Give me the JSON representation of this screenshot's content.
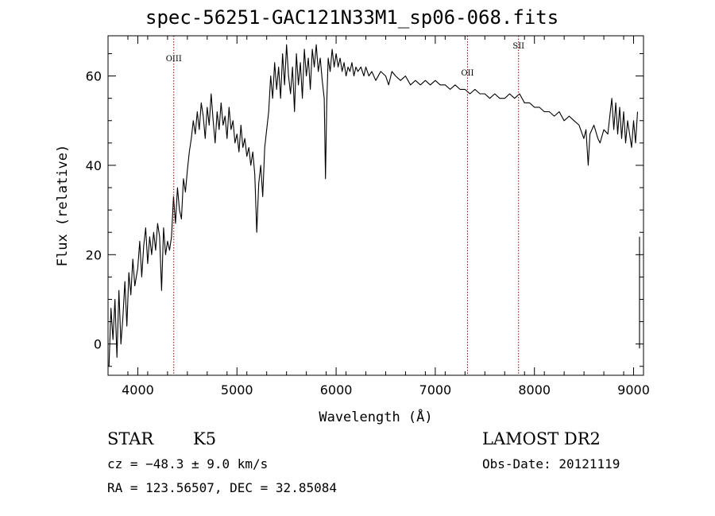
{
  "chart_data": {
    "type": "line",
    "title": "spec-56251-GAC121N33M1_sp06-068.fits",
    "xlabel": "Wavelength (Å)",
    "ylabel": "Flux (relative)",
    "xlim": [
      3700,
      9100
    ],
    "ylim": [
      -7,
      69
    ],
    "xticks": [
      4000,
      5000,
      6000,
      7000,
      8000,
      9000
    ],
    "yticks": [
      0,
      20,
      40,
      60
    ],
    "grid": false,
    "line_color": "#000000",
    "marker_color": "#8b0000",
    "series": [
      {
        "points": [
          [
            3710,
            -5
          ],
          [
            3730,
            8
          ],
          [
            3750,
            1
          ],
          [
            3770,
            10
          ],
          [
            3790,
            -3
          ],
          [
            3810,
            12
          ],
          [
            3830,
            0
          ],
          [
            3850,
            6
          ],
          [
            3870,
            14
          ],
          [
            3890,
            4
          ],
          [
            3910,
            16
          ],
          [
            3930,
            11
          ],
          [
            3950,
            19
          ],
          [
            3970,
            13
          ],
          [
            4000,
            17
          ],
          [
            4020,
            23
          ],
          [
            4040,
            15
          ],
          [
            4060,
            22
          ],
          [
            4080,
            26
          ],
          [
            4100,
            18
          ],
          [
            4120,
            24
          ],
          [
            4140,
            20
          ],
          [
            4160,
            25
          ],
          [
            4180,
            21
          ],
          [
            4200,
            27
          ],
          [
            4220,
            24
          ],
          [
            4240,
            12
          ],
          [
            4260,
            26
          ],
          [
            4280,
            20
          ],
          [
            4300,
            23
          ],
          [
            4320,
            21
          ],
          [
            4340,
            24
          ],
          [
            4360,
            33
          ],
          [
            4380,
            27
          ],
          [
            4400,
            35
          ],
          [
            4420,
            30
          ],
          [
            4440,
            28
          ],
          [
            4460,
            37
          ],
          [
            4480,
            34
          ],
          [
            4500,
            39
          ],
          [
            4520,
            43
          ],
          [
            4540,
            46
          ],
          [
            4560,
            50
          ],
          [
            4580,
            47
          ],
          [
            4600,
            52
          ],
          [
            4620,
            48
          ],
          [
            4640,
            54
          ],
          [
            4660,
            51
          ],
          [
            4680,
            46
          ],
          [
            4700,
            53
          ],
          [
            4720,
            49
          ],
          [
            4740,
            56
          ],
          [
            4760,
            50
          ],
          [
            4780,
            45
          ],
          [
            4800,
            52
          ],
          [
            4820,
            48
          ],
          [
            4840,
            54
          ],
          [
            4860,
            49
          ],
          [
            4880,
            51
          ],
          [
            4900,
            46
          ],
          [
            4920,
            53
          ],
          [
            4940,
            48
          ],
          [
            4960,
            50
          ],
          [
            4980,
            45
          ],
          [
            5000,
            47
          ],
          [
            5020,
            43
          ],
          [
            5040,
            49
          ],
          [
            5060,
            44
          ],
          [
            5080,
            46
          ],
          [
            5100,
            42
          ],
          [
            5120,
            44
          ],
          [
            5140,
            40
          ],
          [
            5160,
            43
          ],
          [
            5180,
            38
          ],
          [
            5200,
            25
          ],
          [
            5220,
            36
          ],
          [
            5240,
            40
          ],
          [
            5260,
            33
          ],
          [
            5280,
            44
          ],
          [
            5300,
            48
          ],
          [
            5320,
            52
          ],
          [
            5340,
            60
          ],
          [
            5360,
            55
          ],
          [
            5380,
            63
          ],
          [
            5400,
            57
          ],
          [
            5420,
            62
          ],
          [
            5440,
            55
          ],
          [
            5460,
            65
          ],
          [
            5480,
            58
          ],
          [
            5500,
            67
          ],
          [
            5520,
            60
          ],
          [
            5540,
            56
          ],
          [
            5560,
            62
          ],
          [
            5580,
            52
          ],
          [
            5600,
            65
          ],
          [
            5620,
            58
          ],
          [
            5640,
            63
          ],
          [
            5660,
            55
          ],
          [
            5680,
            66
          ],
          [
            5700,
            60
          ],
          [
            5720,
            64
          ],
          [
            5740,
            57
          ],
          [
            5760,
            66
          ],
          [
            5780,
            62
          ],
          [
            5800,
            67
          ],
          [
            5820,
            61
          ],
          [
            5840,
            64
          ],
          [
            5860,
            59
          ],
          [
            5880,
            55
          ],
          [
            5893,
            37
          ],
          [
            5906,
            54
          ],
          [
            5920,
            64
          ],
          [
            5940,
            61
          ],
          [
            5960,
            66
          ],
          [
            5980,
            62
          ],
          [
            6000,
            65
          ],
          [
            6020,
            62
          ],
          [
            6040,
            64
          ],
          [
            6060,
            61
          ],
          [
            6080,
            63
          ],
          [
            6100,
            60
          ],
          [
            6120,
            62
          ],
          [
            6140,
            61
          ],
          [
            6160,
            63
          ],
          [
            6180,
            60
          ],
          [
            6200,
            62
          ],
          [
            6220,
            61
          ],
          [
            6250,
            62
          ],
          [
            6280,
            60
          ],
          [
            6300,
            62
          ],
          [
            6330,
            60
          ],
          [
            6360,
            61
          ],
          [
            6400,
            59
          ],
          [
            6450,
            61
          ],
          [
            6500,
            60
          ],
          [
            6530,
            58
          ],
          [
            6563,
            61
          ],
          [
            6600,
            60
          ],
          [
            6650,
            59
          ],
          [
            6700,
            60
          ],
          [
            6750,
            58
          ],
          [
            6800,
            59
          ],
          [
            6850,
            58
          ],
          [
            6900,
            59
          ],
          [
            6950,
            58
          ],
          [
            7000,
            59
          ],
          [
            7050,
            58
          ],
          [
            7100,
            58
          ],
          [
            7150,
            57
          ],
          [
            7200,
            58
          ],
          [
            7250,
            57
          ],
          [
            7300,
            57
          ],
          [
            7350,
            56
          ],
          [
            7400,
            57
          ],
          [
            7450,
            56
          ],
          [
            7500,
            56
          ],
          [
            7550,
            55
          ],
          [
            7600,
            56
          ],
          [
            7650,
            55
          ],
          [
            7700,
            55
          ],
          [
            7750,
            56
          ],
          [
            7800,
            55
          ],
          [
            7850,
            56
          ],
          [
            7900,
            54
          ],
          [
            7950,
            54
          ],
          [
            8000,
            53
          ],
          [
            8050,
            53
          ],
          [
            8100,
            52
          ],
          [
            8150,
            52
          ],
          [
            8200,
            51
          ],
          [
            8250,
            52
          ],
          [
            8300,
            50
          ],
          [
            8350,
            51
          ],
          [
            8400,
            50
          ],
          [
            8450,
            49
          ],
          [
            8498,
            46
          ],
          [
            8520,
            48
          ],
          [
            8542,
            40
          ],
          [
            8560,
            47
          ],
          [
            8600,
            49
          ],
          [
            8640,
            46
          ],
          [
            8662,
            45
          ],
          [
            8700,
            48
          ],
          [
            8740,
            47
          ],
          [
            8780,
            55
          ],
          [
            8800,
            48
          ],
          [
            8820,
            54
          ],
          [
            8840,
            47
          ],
          [
            8860,
            53
          ],
          [
            8880,
            46
          ],
          [
            8900,
            52
          ],
          [
            8920,
            45
          ],
          [
            8940,
            50
          ],
          [
            8960,
            47
          ],
          [
            8980,
            44
          ],
          [
            9000,
            50
          ],
          [
            9020,
            45
          ],
          [
            9040,
            52
          ]
        ]
      },
      {
        "points": [
          [
            9060,
            24
          ],
          [
            9060,
            -1
          ]
        ]
      }
    ],
    "line_markers": [
      {
        "label": "OIII",
        "x": 4363
      },
      {
        "label": "OII",
        "x": 7325
      },
      {
        "label": "SII",
        "x": 7840
      }
    ]
  },
  "footer": {
    "object_type": "STAR",
    "subclass": "K5",
    "survey": "LAMOST DR2",
    "redshift": "cz = −48.3 ± 9.0 km/s",
    "obs_date": "Obs-Date: 20121119",
    "coords": "RA = 123.56507, DEC =  32.85084"
  }
}
